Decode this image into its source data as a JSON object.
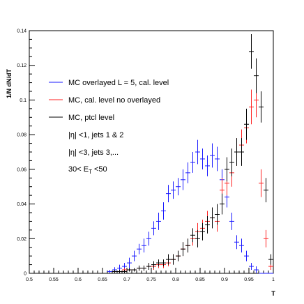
{
  "chart_data": {
    "type": "scatter",
    "title": "",
    "xlabel": "T",
    "ylabel": "1/N dN/dT",
    "xlim": [
      0.5,
      1.0
    ],
    "ylim": [
      0,
      0.14
    ],
    "x_ticks": [
      "0.5",
      "0.55",
      "0.6",
      "0.65",
      "0.7",
      "0.75",
      "0.8",
      "0.85",
      "0.9",
      "0.95",
      "1"
    ],
    "y_ticks": [
      "0",
      "0.02",
      "0.04",
      "0.06",
      "0.08",
      "0.1",
      "0.12",
      "0.14"
    ],
    "grid": false,
    "legend_position": "top-left",
    "legend_entries": [
      "MC overlayed L = 5, cal. level",
      "MC, cal. level no overlayed",
      "MC, ptcl level"
    ],
    "annotations": [
      "|η| <1, jets 1 & 2",
      "|η| <3, jets 3,...",
      "30< E",
      "T",
      " <50"
    ],
    "series": [
      {
        "name": "MC overlayed L = 5, cal. level",
        "color": "#1a1aff",
        "x": [
          0.505,
          0.515,
          0.525,
          0.535,
          0.545,
          0.555,
          0.565,
          0.575,
          0.585,
          0.595,
          0.605,
          0.615,
          0.625,
          0.635,
          0.645,
          0.655,
          0.665,
          0.675,
          0.685,
          0.695,
          0.705,
          0.715,
          0.725,
          0.735,
          0.745,
          0.755,
          0.765,
          0.775,
          0.785,
          0.795,
          0.805,
          0.815,
          0.825,
          0.835,
          0.845,
          0.855,
          0.865,
          0.875,
          0.885,
          0.895,
          0.905,
          0.915,
          0.925,
          0.935,
          0.945,
          0.955,
          0.965,
          0.975,
          0.985,
          0.995
        ],
        "y": [
          0,
          0,
          0,
          0,
          0,
          0,
          0,
          0,
          0,
          0,
          0,
          0,
          0,
          0,
          0,
          0,
          0.001,
          0.002,
          0.003,
          0.004,
          0.006,
          0.01,
          0.014,
          0.016,
          0.02,
          0.026,
          0.03,
          0.036,
          0.046,
          0.048,
          0.05,
          0.054,
          0.058,
          0.064,
          0.07,
          0.066,
          0.062,
          0.068,
          0.066,
          0.054,
          0.044,
          0.03,
          0.018,
          0.016,
          0.01,
          0.004,
          0.002,
          0,
          0,
          0
        ],
        "err": [
          0,
          0,
          0,
          0,
          0,
          0,
          0,
          0,
          0,
          0,
          0,
          0,
          0,
          0,
          0,
          0,
          0.001,
          0.0015,
          0.002,
          0.002,
          0.003,
          0.003,
          0.003,
          0.004,
          0.004,
          0.004,
          0.005,
          0.005,
          0.005,
          0.005,
          0.005,
          0.006,
          0.006,
          0.006,
          0.007,
          0.006,
          0.006,
          0.007,
          0.007,
          0.006,
          0.006,
          0.005,
          0.004,
          0.004,
          0.003,
          0.002,
          0.002,
          0,
          0,
          0
        ]
      },
      {
        "name": "MC, cal. level no overlayed",
        "color": "#ff2020",
        "x": [
          0.505,
          0.515,
          0.525,
          0.535,
          0.545,
          0.555,
          0.565,
          0.575,
          0.585,
          0.595,
          0.605,
          0.615,
          0.625,
          0.635,
          0.645,
          0.655,
          0.665,
          0.675,
          0.685,
          0.695,
          0.705,
          0.715,
          0.725,
          0.735,
          0.745,
          0.755,
          0.765,
          0.775,
          0.785,
          0.795,
          0.805,
          0.815,
          0.825,
          0.835,
          0.845,
          0.855,
          0.865,
          0.875,
          0.885,
          0.895,
          0.905,
          0.915,
          0.925,
          0.935,
          0.945,
          0.955,
          0.965,
          0.975,
          0.985,
          0.995
        ],
        "y": [
          0,
          0,
          0,
          0,
          0,
          0,
          0,
          0,
          0,
          0,
          0,
          0,
          0,
          0,
          0,
          0,
          0,
          0.001,
          0.001,
          0.002,
          0.002,
          0.002,
          0.003,
          0.003,
          0.004,
          0.004,
          0.005,
          0.005,
          0.006,
          0.008,
          0.01,
          0.014,
          0.016,
          0.02,
          0.024,
          0.026,
          0.03,
          0.032,
          0.03,
          0.048,
          0.052,
          0.058,
          0.07,
          0.074,
          0.084,
          0.096,
          0.1,
          0.052,
          0.02,
          0.004
        ],
        "err": [
          0,
          0,
          0,
          0,
          0,
          0,
          0,
          0,
          0,
          0,
          0,
          0,
          0,
          0,
          0,
          0,
          0,
          0.001,
          0.001,
          0.001,
          0.001,
          0.001,
          0.0015,
          0.0015,
          0.002,
          0.002,
          0.002,
          0.002,
          0.002,
          0.003,
          0.003,
          0.004,
          0.004,
          0.004,
          0.005,
          0.005,
          0.006,
          0.006,
          0.006,
          0.007,
          0.007,
          0.008,
          0.008,
          0.009,
          0.009,
          0.01,
          0.01,
          0.008,
          0.005,
          0.002
        ]
      },
      {
        "name": "MC, ptcl level",
        "color": "#000000",
        "x": [
          0.505,
          0.515,
          0.525,
          0.535,
          0.545,
          0.555,
          0.565,
          0.575,
          0.585,
          0.595,
          0.605,
          0.615,
          0.625,
          0.635,
          0.645,
          0.655,
          0.665,
          0.675,
          0.685,
          0.695,
          0.705,
          0.715,
          0.725,
          0.735,
          0.745,
          0.755,
          0.765,
          0.775,
          0.785,
          0.795,
          0.805,
          0.815,
          0.825,
          0.835,
          0.845,
          0.855,
          0.865,
          0.875,
          0.885,
          0.895,
          0.905,
          0.915,
          0.925,
          0.935,
          0.945,
          0.955,
          0.965,
          0.975,
          0.985,
          0.995
        ],
        "y": [
          0,
          0,
          0,
          0,
          0,
          0,
          0,
          0,
          0,
          0,
          0,
          0,
          0,
          0,
          0,
          0,
          0,
          0.001,
          0.001,
          0.001,
          0.002,
          0.002,
          0.003,
          0.003,
          0.004,
          0.005,
          0.006,
          0.006,
          0.008,
          0.008,
          0.01,
          0.014,
          0.016,
          0.022,
          0.02,
          0.024,
          0.028,
          0.032,
          0.034,
          0.04,
          0.06,
          0.064,
          0.07,
          0.07,
          0.086,
          0.128,
          0.114,
          0.096,
          0.048,
          0.008
        ],
        "err": [
          0,
          0,
          0,
          0,
          0,
          0,
          0,
          0,
          0,
          0,
          0,
          0,
          0,
          0,
          0,
          0,
          0,
          0.001,
          0.001,
          0.001,
          0.001,
          0.001,
          0.0015,
          0.0015,
          0.002,
          0.002,
          0.002,
          0.002,
          0.003,
          0.003,
          0.003,
          0.004,
          0.004,
          0.004,
          0.005,
          0.005,
          0.005,
          0.006,
          0.006,
          0.006,
          0.007,
          0.008,
          0.008,
          0.008,
          0.009,
          0.01,
          0.01,
          0.009,
          0.007,
          0.003
        ]
      }
    ]
  }
}
